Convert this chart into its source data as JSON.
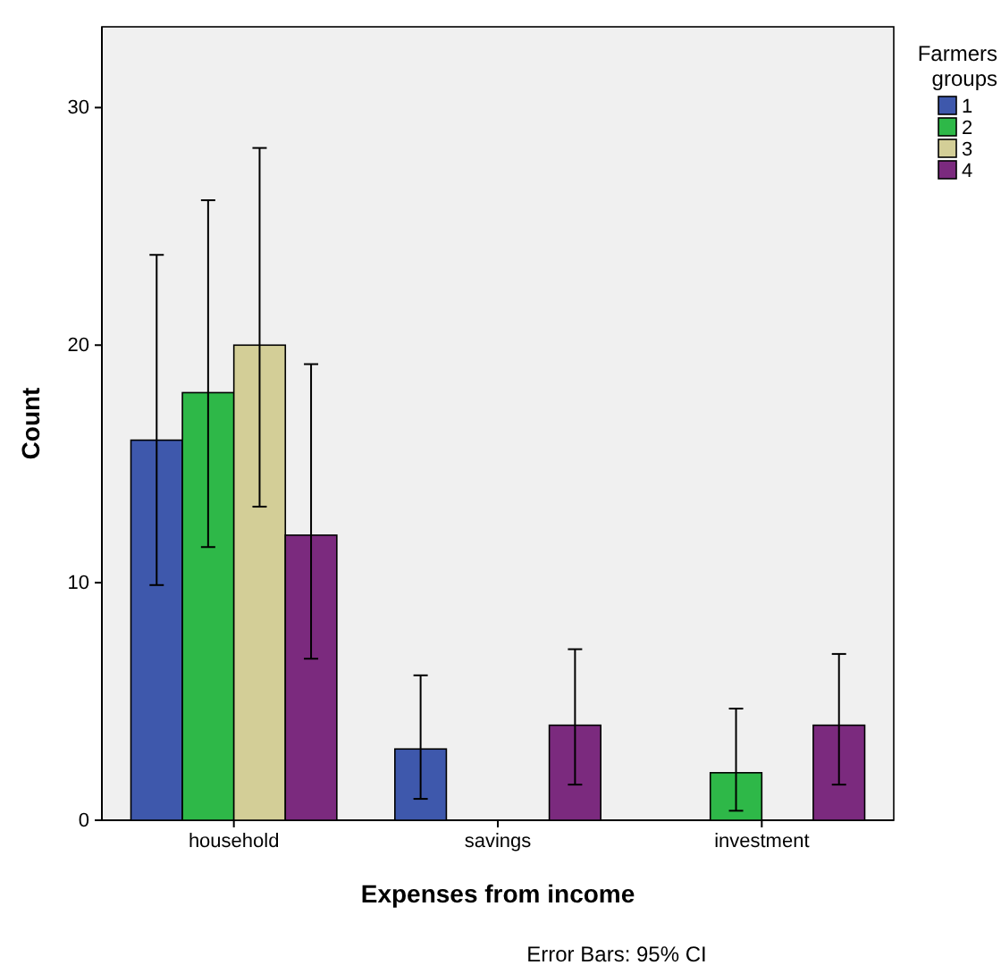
{
  "chart_data": {
    "type": "bar",
    "xlabel": "Expenses from income",
    "ylabel": "Count",
    "legend_title": "Farmers groups",
    "categories": [
      "household",
      "savings",
      "investment"
    ],
    "series": [
      {
        "name": "1",
        "color": "#3e58ac",
        "values": [
          16,
          3,
          null
        ],
        "errors": [
          [
            9.9,
            23.8
          ],
          [
            0.9,
            6.1
          ],
          null
        ]
      },
      {
        "name": "2",
        "color": "#2eb848",
        "values": [
          18,
          null,
          2
        ],
        "errors": [
          [
            11.5,
            26.1
          ],
          null,
          [
            0.4,
            4.7
          ]
        ]
      },
      {
        "name": "3",
        "color": "#d3ce97",
        "values": [
          20,
          null,
          null
        ],
        "errors": [
          [
            13.2,
            28.3
          ],
          null,
          null
        ]
      },
      {
        "name": "4",
        "color": "#7b2a7e",
        "values": [
          12,
          4,
          4
        ],
        "errors": [
          [
            6.8,
            19.2
          ],
          [
            1.5,
            7.2
          ],
          [
            1.5,
            7.0
          ]
        ]
      }
    ],
    "ylim": [
      0,
      33.4
    ],
    "yticks": [
      0,
      10,
      20,
      30
    ],
    "grid": false,
    "legend": "right",
    "annotations": [
      "Error Bars: 95% CI"
    ]
  }
}
